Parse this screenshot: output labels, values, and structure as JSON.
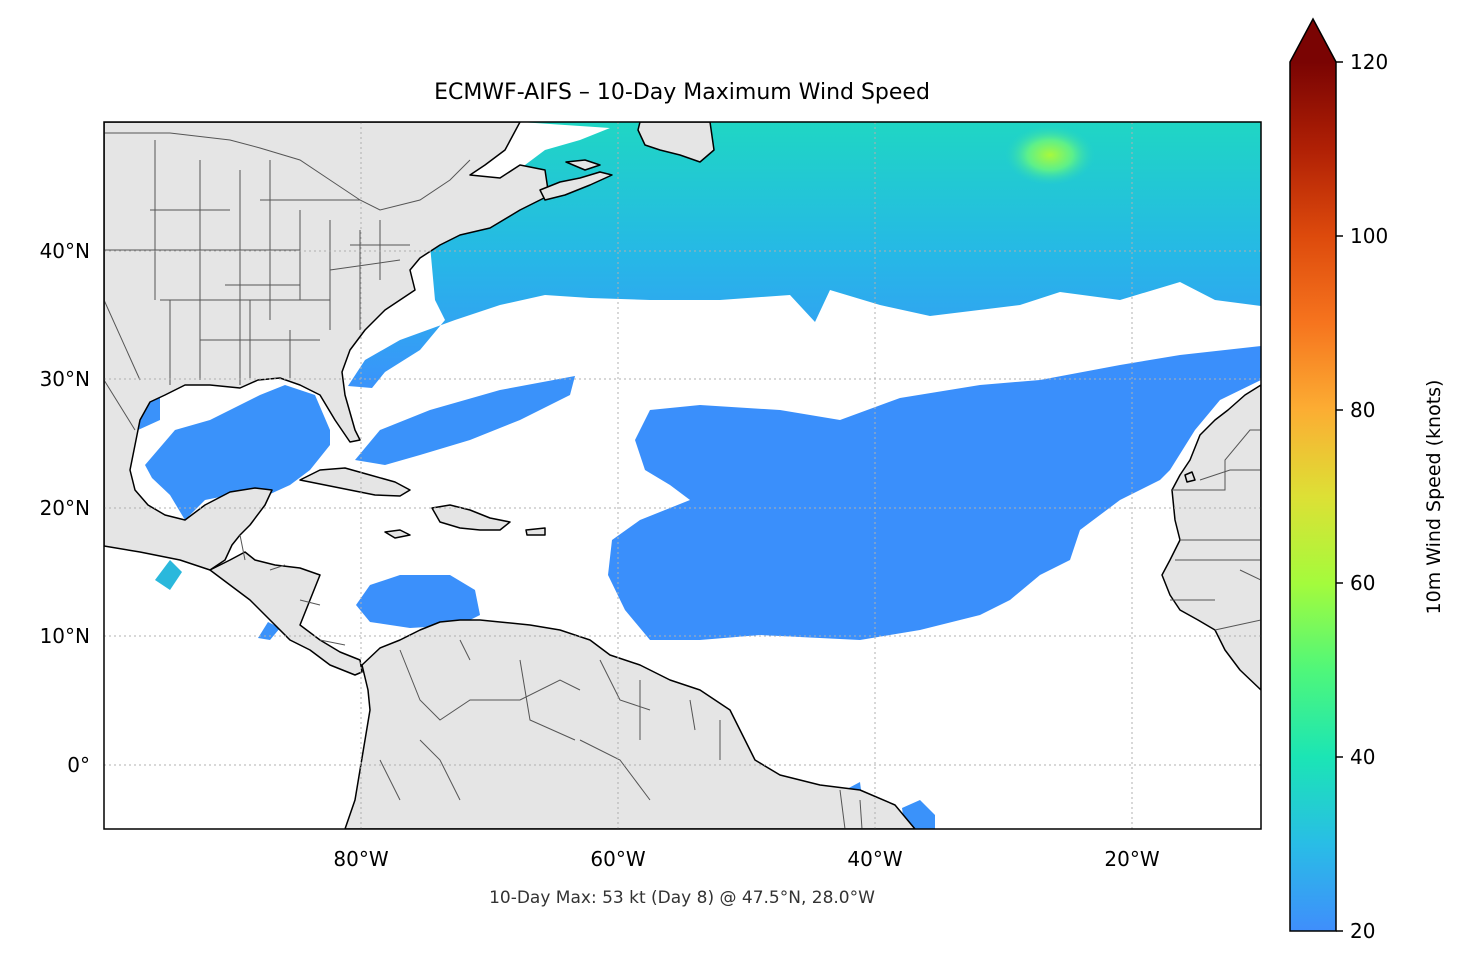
{
  "title": "ECMWF-AIFS – 10-Day Maximum Wind Speed",
  "footer": "10-Day Max: 53 kt (Day 8) @ 47.5°N, 28.0°W",
  "map": {
    "projection": "PlateCarree",
    "extent": {
      "lon_min": -100,
      "lon_max": -10,
      "lat_min": -5,
      "lat_max": 50
    },
    "lon_ticks": [
      {
        "value": -80,
        "label": "80°W"
      },
      {
        "value": -60,
        "label": "60°W"
      },
      {
        "value": -40,
        "label": "40°W"
      },
      {
        "value": -20,
        "label": "20°W"
      }
    ],
    "lat_ticks": [
      {
        "value": 40,
        "label": "40°N"
      },
      {
        "value": 30,
        "label": "30°N"
      },
      {
        "value": 20,
        "label": "20°N"
      },
      {
        "value": 10,
        "label": "10°N"
      },
      {
        "value": 0,
        "label": "0°"
      }
    ],
    "gridlines": "dotted",
    "land_color": "#e5e5e5",
    "ocean_color": "#ffffff",
    "max_point": {
      "lat": 47.5,
      "lon": -28.0,
      "value_kt": 53,
      "day": 8
    }
  },
  "colorbar": {
    "label": "10m Wind Speed (knots)",
    "min": 20,
    "max": 120,
    "extend": "max",
    "ticks": [
      {
        "value": 20,
        "label": "20"
      },
      {
        "value": 40,
        "label": "40"
      },
      {
        "value": 60,
        "label": "60"
      },
      {
        "value": 80,
        "label": "80"
      },
      {
        "value": 100,
        "label": "100"
      },
      {
        "value": 120,
        "label": "120"
      }
    ],
    "colormap": "turbo",
    "colors": [
      "#3f8efc",
      "#29bde6",
      "#1be5b5",
      "#4ff77a",
      "#a4fb3c",
      "#dde035",
      "#fcad33",
      "#f6741e",
      "#dd4a0c",
      "#b02005",
      "#7a0403"
    ]
  }
}
